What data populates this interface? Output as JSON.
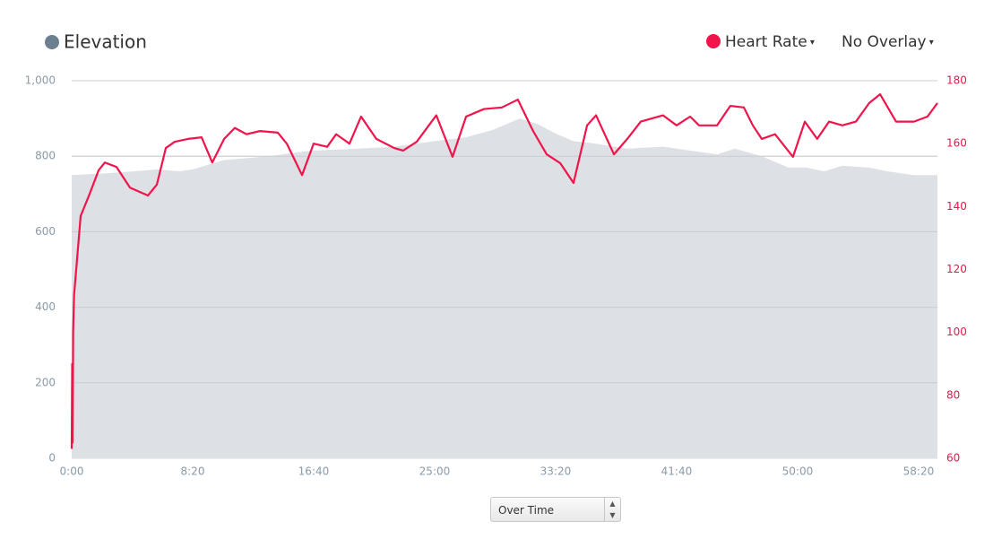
{
  "chart_data": {
    "type": "line",
    "xlim": [
      0,
      3578
    ],
    "xticks": [
      {
        "value": 0,
        "label": "0:00"
      },
      {
        "value": 500,
        "label": "8:20"
      },
      {
        "value": 1000,
        "label": "16:40"
      },
      {
        "value": 1500,
        "label": "25:00"
      },
      {
        "value": 2000,
        "label": "33:20"
      },
      {
        "value": 2500,
        "label": "41:40"
      },
      {
        "value": 3000,
        "label": "50:00"
      },
      {
        "value": 3500,
        "label": "58:20"
      }
    ],
    "ylim": [
      0,
      1000
    ],
    "yticks": [
      0,
      200,
      400,
      600,
      800,
      {
        "value": 1000,
        "label": "1,000"
      }
    ],
    "y2lim": [
      60,
      180
    ],
    "y2ticks": [
      60,
      80,
      100,
      120,
      140,
      160,
      180
    ],
    "grid": true,
    "overlay": "No Overlay",
    "mode": "Over Time",
    "series": [
      {
        "name": "Elevation",
        "type": "area",
        "axis": "y",
        "color": "#6b7f90",
        "fill": "#dde0e4",
        "x": [
          0,
          148,
          259,
          352,
          444,
          500,
          630,
          815,
          926,
          1000,
          1185,
          1333,
          1500,
          1630,
          1741,
          1852,
          1926,
          2000,
          2074,
          2148,
          2296,
          2444,
          2556,
          2667,
          2741,
          2852,
          2963,
          3037,
          3111,
          3185,
          3296,
          3370,
          3481,
          3578
        ],
        "values": [
          750,
          755,
          760,
          765,
          760,
          765,
          790,
          800,
          810,
          815,
          820,
          825,
          840,
          850,
          870,
          900,
          885,
          860,
          840,
          835,
          820,
          825,
          815,
          805,
          820,
          800,
          770,
          770,
          760,
          775,
          770,
          760,
          750,
          750
        ]
      },
      {
        "name": "Heart Rate",
        "type": "line",
        "axis": "y2",
        "color": "#f0144b",
        "x": [
          0,
          2,
          4,
          6,
          10,
          37,
          74,
          111,
          137,
          185,
          241,
          315,
          352,
          389,
          426,
          481,
          537,
          581,
          630,
          674,
          722,
          778,
          852,
          889,
          952,
          1000,
          1056,
          1093,
          1148,
          1196,
          1259,
          1333,
          1370,
          1426,
          1507,
          1574,
          1630,
          1704,
          1778,
          1844,
          1907,
          1963,
          2019,
          2074,
          2130,
          2167,
          2241,
          2296,
          2352,
          2444,
          2500,
          2556,
          2593,
          2667,
          2722,
          2778,
          2815,
          2852,
          2907,
          2981,
          3030,
          3081,
          3130,
          3185,
          3241,
          3296,
          3341,
          3407,
          3481,
          3537,
          3578
        ],
        "values": [
          63,
          90,
          65,
          100,
          112,
          137,
          144,
          151.5,
          154,
          152.6,
          146,
          143.5,
          147,
          158.6,
          160.6,
          161.5,
          162,
          154,
          161.5,
          165,
          163,
          164,
          163.5,
          160,
          150,
          160,
          159,
          163,
          160,
          168.6,
          161.5,
          158.6,
          157.8,
          160.6,
          169,
          155.8,
          168.6,
          171,
          171.5,
          174,
          164,
          156.6,
          153.8,
          147.5,
          165.8,
          169,
          156.6,
          161.5,
          167,
          169,
          165.8,
          168.6,
          165.8,
          165.8,
          172,
          171.5,
          165.8,
          161.5,
          163,
          155.8,
          167,
          161.5,
          167,
          165.8,
          167,
          172.9,
          175.7,
          167,
          167,
          168.6,
          172.9
        ]
      }
    ]
  }
}
